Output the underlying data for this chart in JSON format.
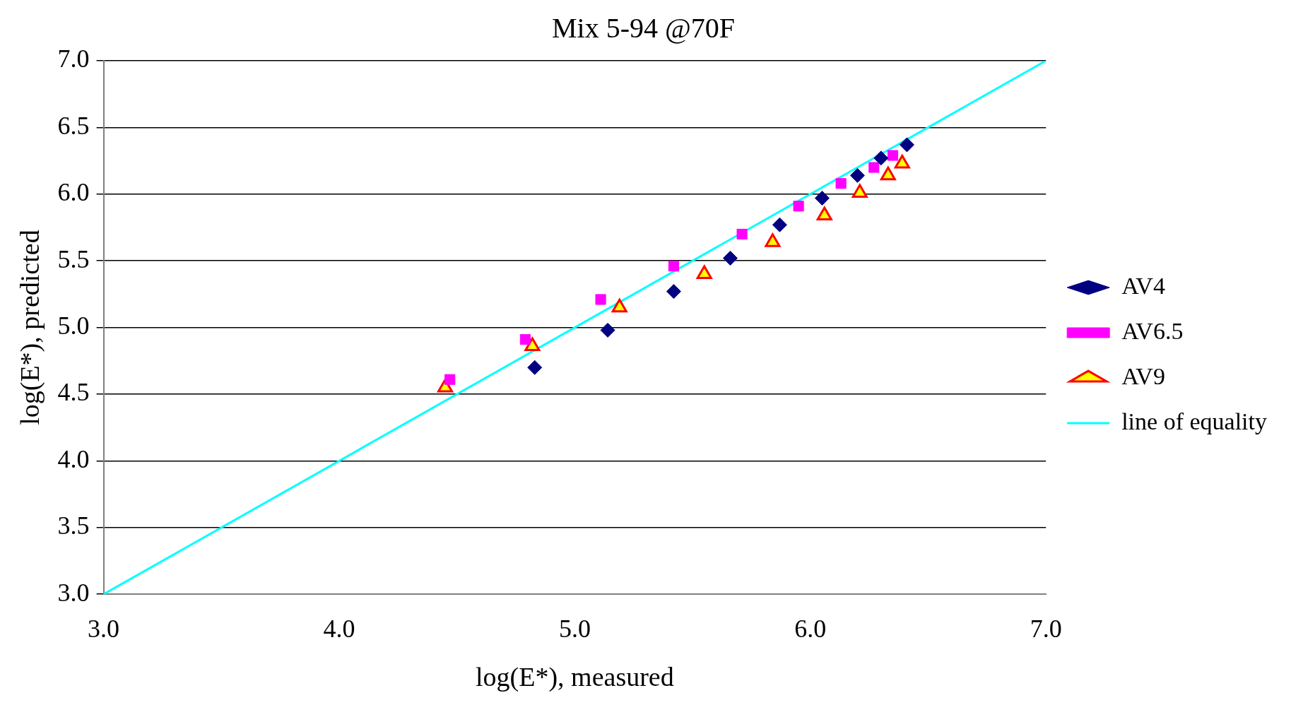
{
  "chart_data": {
    "type": "scatter",
    "title": "Mix 5-94 @70F",
    "xlabel": "log(E*), measured",
    "ylabel": "log(E*), predicted",
    "xlim": [
      3,
      7
    ],
    "xticks": [
      {
        "value": 3,
        "label": "3.0"
      },
      {
        "value": 4,
        "label": "4.0"
      },
      {
        "value": 5,
        "label": "5.0"
      },
      {
        "value": 6,
        "label": "6.0"
      },
      {
        "value": 7,
        "label": "7.0"
      }
    ],
    "ylim": [
      3,
      7
    ],
    "yticks": [
      {
        "value": 3,
        "label": "3.0"
      },
      {
        "value": 3.5,
        "label": "3.5"
      },
      {
        "value": 4,
        "label": "4.0"
      },
      {
        "value": 4.5,
        "label": "4.5"
      },
      {
        "value": 5,
        "label": "5.0"
      },
      {
        "value": 5.5,
        "label": "5.5"
      },
      {
        "value": 6,
        "label": "6.0"
      },
      {
        "value": 6.5,
        "label": "6.5"
      },
      {
        "value": 7,
        "label": "7.0"
      }
    ],
    "grid": "y",
    "legend": "right",
    "series": [
      {
        "name": "AV4",
        "color": "#000080",
        "marker": "diamond",
        "x": [
          4.83,
          5.14,
          5.42,
          5.66,
          5.87,
          6.05,
          6.2,
          6.3,
          6.41
        ],
        "values": [
          4.7,
          4.98,
          5.27,
          5.52,
          5.77,
          5.97,
          6.14,
          6.27,
          6.37
        ]
      },
      {
        "name": "AV6.5",
        "color": "#ff00ff",
        "marker": "square",
        "x": [
          4.47,
          4.79,
          5.11,
          5.42,
          5.71,
          5.95,
          6.13,
          6.27,
          6.35
        ],
        "values": [
          4.61,
          4.91,
          5.21,
          5.46,
          5.7,
          5.91,
          6.08,
          6.2,
          6.29
        ]
      },
      {
        "name": "AV9",
        "color": "#ff0000",
        "marker": "triangle",
        "x": [
          4.45,
          4.82,
          5.19,
          5.55,
          5.84,
          6.06,
          6.21,
          6.33,
          6.39
        ],
        "values": [
          4.55,
          4.86,
          5.15,
          5.4,
          5.64,
          5.84,
          6.01,
          6.14,
          6.23
        ]
      },
      {
        "name": "line of equality",
        "type": "line",
        "color": "#00ffff",
        "marker": "none",
        "x": [
          3,
          7
        ],
        "values": [
          3,
          7
        ]
      }
    ]
  }
}
